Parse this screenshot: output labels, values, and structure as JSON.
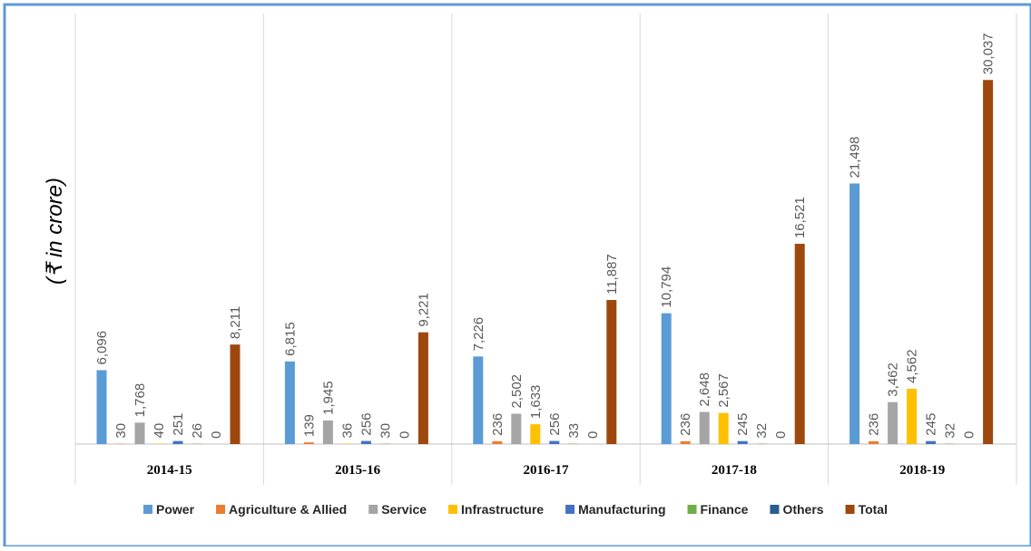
{
  "chart_data": {
    "type": "bar",
    "title": "",
    "xlabel": "",
    "ylabel": "(₹ in crore)",
    "categories": [
      "2014-15",
      "2015-16",
      "2016-17",
      "2017-18",
      "2018-19"
    ],
    "ylim": [
      0,
      32000
    ],
    "grid": "vertical separators between categories",
    "legend_position": "bottom",
    "series": [
      {
        "name": "Power",
        "color": "#5B9BD5",
        "values": [
          6096,
          6815,
          7226,
          10794,
          21498
        ],
        "labels": [
          "6,096",
          "6,815",
          "7,226",
          "10,794",
          "21,498"
        ]
      },
      {
        "name": "Agriculture & Allied",
        "color": "#ED7D31",
        "values": [
          30,
          139,
          236,
          236,
          236
        ],
        "labels": [
          "30",
          "139",
          "236",
          "236",
          "236"
        ]
      },
      {
        "name": "Service",
        "color": "#A5A5A5",
        "values": [
          1768,
          1945,
          2502,
          2648,
          3462
        ],
        "labels": [
          "1,768",
          "1,945",
          "2,502",
          "2,648",
          "3,462"
        ]
      },
      {
        "name": "Infrastructure",
        "color": "#FFC000",
        "values": [
          40,
          36,
          1633,
          2567,
          4562
        ],
        "labels": [
          "40",
          "36",
          "1,633",
          "2,567",
          "4,562"
        ]
      },
      {
        "name": "Manufacturing",
        "color": "#4472C4",
        "values": [
          251,
          256,
          256,
          245,
          245
        ],
        "labels": [
          "251",
          "256",
          "256",
          "245",
          "245"
        ]
      },
      {
        "name": "Finance",
        "color": "#70AD47",
        "values": [
          26,
          30,
          33,
          32,
          32
        ],
        "labels": [
          "26",
          "30",
          "33",
          "32",
          "32"
        ]
      },
      {
        "name": "Others",
        "color": "#255E91",
        "values": [
          0,
          0,
          0,
          0,
          0
        ],
        "labels": [
          "0",
          "0",
          "0",
          "0",
          "0"
        ]
      },
      {
        "name": "Total",
        "color": "#9E480E",
        "values": [
          8211,
          9221,
          11887,
          16521,
          30037
        ],
        "labels": [
          "8,211",
          "9,221",
          "11,887",
          "16,521",
          "30,037"
        ]
      }
    ]
  },
  "colors": {
    "frame_border": "#5B9BD5",
    "gridline": "#D9D9D9",
    "axis": "#BFBFBF"
  }
}
